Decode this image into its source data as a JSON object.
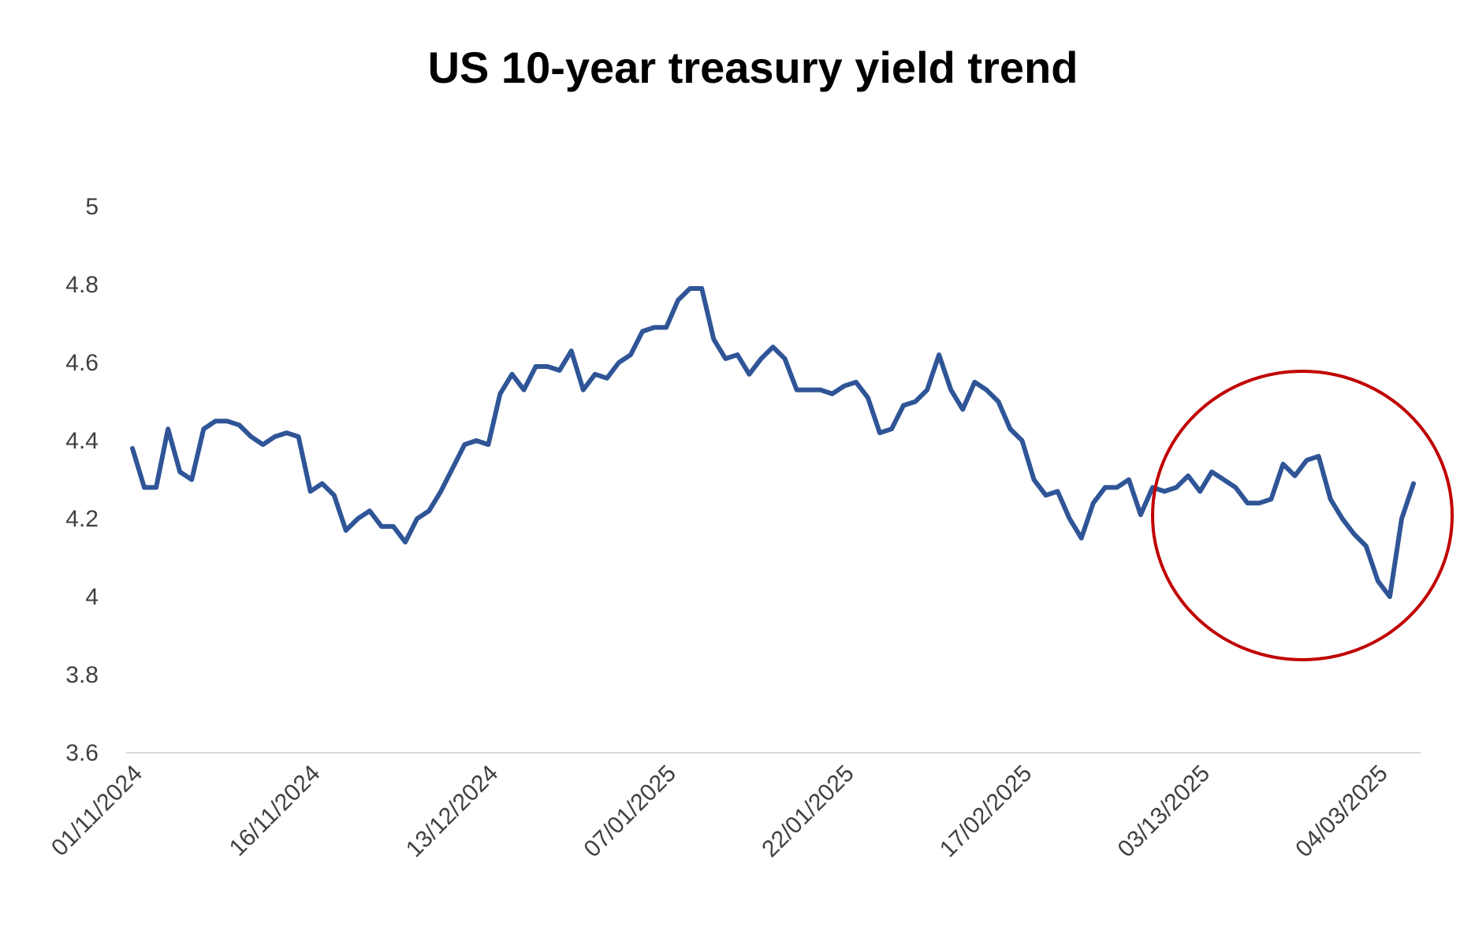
{
  "chart_data": {
    "type": "line",
    "title": "US 10-year treasury yield trend",
    "xlabel": "",
    "ylabel": "",
    "ylim": [
      3.6,
      5
    ],
    "yticks": [
      "3.6",
      "3.8",
      "4",
      "4.2",
      "4.4",
      "4.6",
      "4.8",
      "5"
    ],
    "xtick_labels": [
      "01/11/2024",
      "16/11/2024",
      "13/12/2024",
      "07/01/2025",
      "22/01/2025",
      "17/02/2025",
      "03/13/2025",
      "04/03/2025"
    ],
    "xtick_every": 15,
    "grid": false,
    "legend": "none",
    "line_color": "#2F5597",
    "highlight_color": "#C00000",
    "highlight_range": [
      95,
      108
    ],
    "series": [
      {
        "name": "US 10-year treasury yield",
        "values": [
          4.38,
          4.28,
          4.28,
          4.43,
          4.32,
          4.3,
          4.43,
          4.45,
          4.45,
          4.44,
          4.41,
          4.39,
          4.41,
          4.42,
          4.41,
          4.27,
          4.29,
          4.26,
          4.17,
          4.2,
          4.22,
          4.18,
          4.18,
          4.14,
          4.2,
          4.22,
          4.27,
          4.33,
          4.39,
          4.4,
          4.39,
          4.52,
          4.57,
          4.53,
          4.59,
          4.59,
          4.58,
          4.63,
          4.53,
          4.57,
          4.56,
          4.6,
          4.62,
          4.68,
          4.69,
          4.69,
          4.76,
          4.79,
          4.79,
          4.66,
          4.61,
          4.62,
          4.57,
          4.61,
          4.64,
          4.61,
          4.53,
          4.53,
          4.53,
          4.52,
          4.54,
          4.55,
          4.51,
          4.42,
          4.43,
          4.49,
          4.5,
          4.53,
          4.62,
          4.53,
          4.48,
          4.55,
          4.53,
          4.5,
          4.43,
          4.4,
          4.3,
          4.26,
          4.27,
          4.2,
          4.15,
          4.24,
          4.28,
          4.28,
          4.3,
          4.21,
          4.28,
          4.27,
          4.28,
          4.31,
          4.27,
          4.32,
          4.3,
          4.28,
          4.24,
          4.24,
          4.25,
          4.34,
          4.31,
          4.35,
          4.36,
          4.25,
          4.2,
          4.16,
          4.13,
          4.04,
          4.0,
          4.2,
          4.29
        ]
      }
    ]
  }
}
